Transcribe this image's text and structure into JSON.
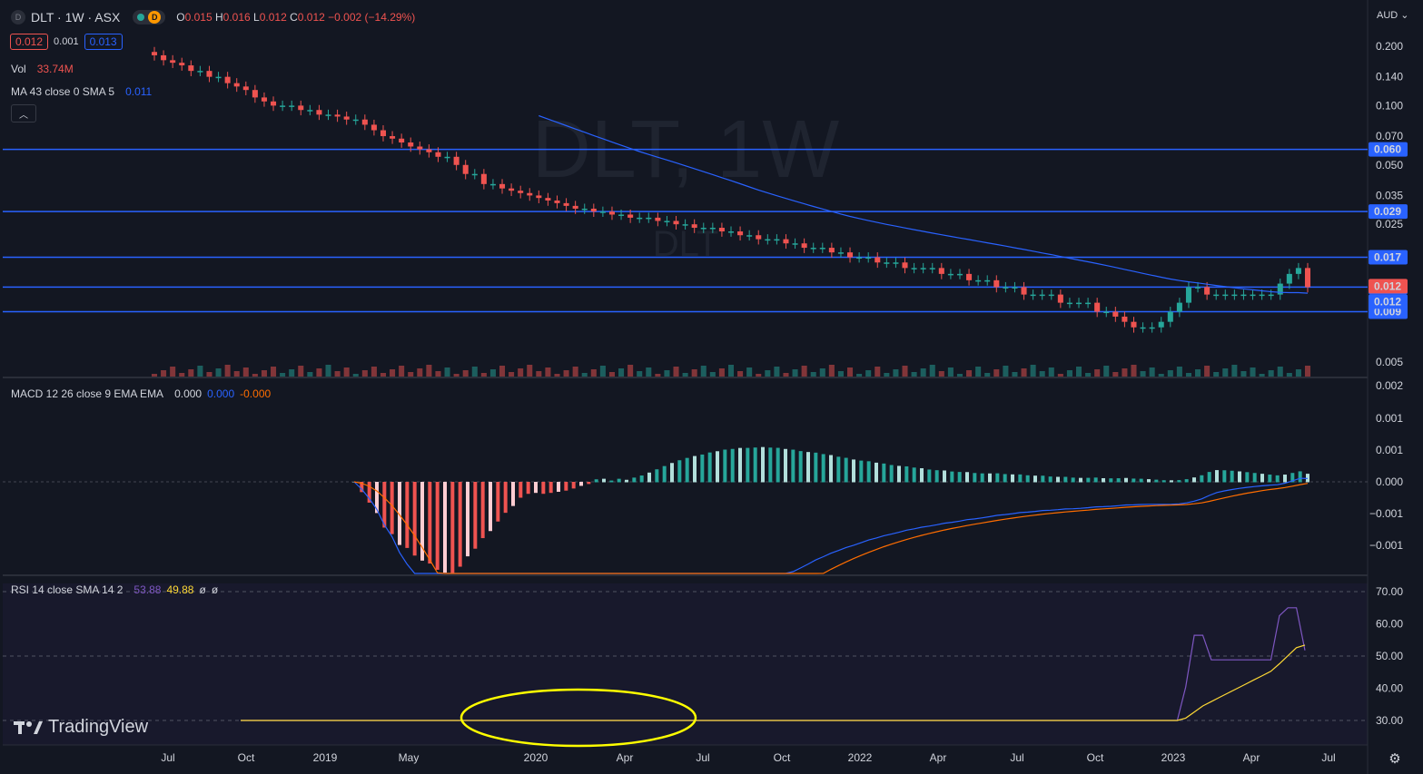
{
  "header": {
    "symbol_icon": "D",
    "title": "DLT · 1W · ASX",
    "status_letter": "D",
    "ohlc": {
      "o_label": "O",
      "o": "0.015",
      "h_label": "H",
      "h": "0.016",
      "l_label": "L",
      "l": "0.012",
      "c_label": "C",
      "c": "0.012",
      "change": "−0.002 (−14.29%)"
    },
    "sell": "0.012",
    "spread": "0.001",
    "buy": "0.013"
  },
  "vol_legend": {
    "label": "Vol",
    "value": "33.74M"
  },
  "ma_legend": {
    "label": "MA 43 close 0 SMA 5",
    "value": "0.011"
  },
  "macd_legend": {
    "label": "MACD 12 26 close 9 EMA EMA",
    "hist": "0.000",
    "macd": "0.000",
    "signal": "-0.000"
  },
  "rsi_legend": {
    "label": "RSI 14 close SMA 14 2",
    "rsi": "53.88",
    "ma": "49.88",
    "e1": "ø",
    "e2": "ø"
  },
  "watermark": {
    "symbol": "DLT, 1W",
    "sub": "DLT"
  },
  "brand": {
    "name": "TradingView"
  },
  "currency": "AUD",
  "colors": {
    "up": "#26a69a",
    "down": "#ef5350",
    "up_light": "#b2dfdb",
    "down_light": "#ffcdd2",
    "level": "#2962ff",
    "ma": "#2962ff",
    "macd": "#2962ff",
    "signal": "#ff6d00",
    "rsi": "#7e57c2",
    "rsi_ma": "#fdd835",
    "annotation": "#ffff00"
  },
  "chart_data": {
    "type": "candlestick",
    "interval": "1W",
    "price_axis": {
      "scale": "log",
      "ticks": [
        "0.200",
        "0.140",
        "0.100",
        "0.070",
        "0.050",
        "0.035",
        "0.025",
        "0.005"
      ]
    },
    "x_ticks": [
      "Jul",
      "Oct",
      "2019",
      "May",
      "2020",
      "Apr",
      "Jul",
      "Oct",
      "2022",
      "Apr",
      "Jul",
      "Oct",
      "2023",
      "Apr",
      "Jul"
    ],
    "horizontal_levels": [
      "0.060",
      "0.029",
      "0.017",
      "0.012",
      "0.009"
    ],
    "price_badges": [
      {
        "value": "0.012",
        "kind": "last"
      },
      {
        "value": "0.012",
        "kind": "level"
      }
    ],
    "close_series": [
      0.18,
      0.17,
      0.165,
      0.16,
      0.15,
      0.15,
      0.14,
      0.14,
      0.13,
      0.125,
      0.12,
      0.11,
      0.105,
      0.1,
      0.1,
      0.1,
      0.095,
      0.095,
      0.09,
      0.09,
      0.088,
      0.085,
      0.085,
      0.08,
      0.075,
      0.07,
      0.068,
      0.065,
      0.062,
      0.06,
      0.058,
      0.055,
      0.055,
      0.05,
      0.045,
      0.045,
      0.04,
      0.04,
      0.038,
      0.037,
      0.036,
      0.035,
      0.034,
      0.033,
      0.032,
      0.031,
      0.03,
      0.03,
      0.029,
      0.029,
      0.028,
      0.028,
      0.027,
      0.027,
      0.027,
      0.026,
      0.026,
      0.025,
      0.025,
      0.024,
      0.024,
      0.024,
      0.023,
      0.023,
      0.022,
      0.022,
      0.021,
      0.021,
      0.021,
      0.02,
      0.02,
      0.019,
      0.019,
      0.019,
      0.018,
      0.018,
      0.017,
      0.017,
      0.017,
      0.016,
      0.016,
      0.016,
      0.015,
      0.015,
      0.015,
      0.015,
      0.014,
      0.014,
      0.014,
      0.013,
      0.013,
      0.013,
      0.012,
      0.012,
      0.012,
      0.011,
      0.011,
      0.011,
      0.011,
      0.01,
      0.01,
      0.01,
      0.01,
      0.009,
      0.009,
      0.0085,
      0.008,
      0.0075,
      0.0075,
      0.0075,
      0.008,
      0.009,
      0.01,
      0.012,
      0.012,
      0.011,
      0.011,
      0.011,
      0.011,
      0.011,
      0.011,
      0.011,
      0.011,
      0.0125,
      0.014,
      0.015,
      0.012
    ],
    "ma_label_value": "0.011",
    "volume_axis": "shown as bars at bottom of price pane",
    "macd_axis_ticks": [
      "0.002",
      "0.001",
      "0.001",
      "0.000",
      "−0.001",
      "−0.001"
    ],
    "rsi_axis_ticks": [
      "70.00",
      "60.00",
      "50.00",
      "40.00",
      "30.00"
    ],
    "rsi_band": [
      30,
      70
    ],
    "annotation": {
      "shape": "ellipse",
      "around": "RSI trough 2019–2020"
    }
  }
}
